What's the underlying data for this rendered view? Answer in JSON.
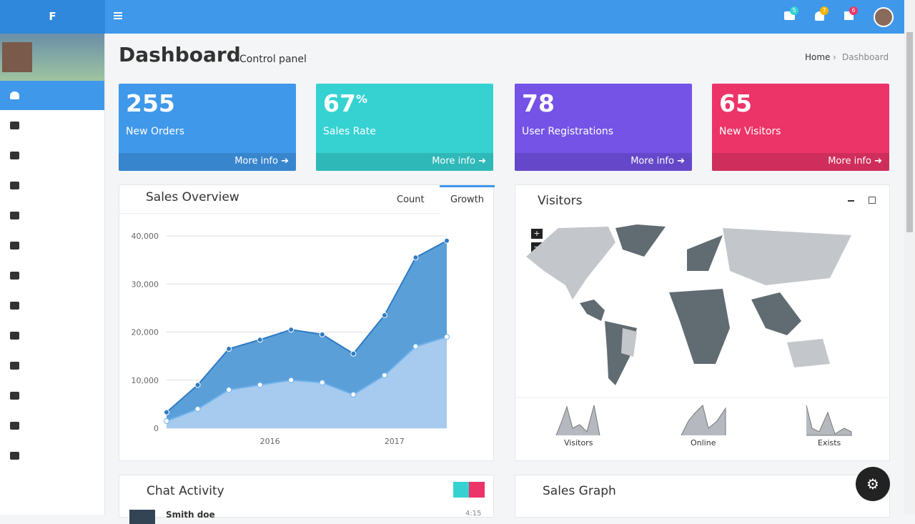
{
  "sidebar": {
    "logo": "F"
  },
  "topbar": {
    "badges": [
      "5",
      "7",
      "6"
    ]
  },
  "header": {
    "title": "Dashboard",
    "subtitle": "Control panel",
    "breadcrumb": [
      "Home",
      "Dashboard"
    ]
  },
  "stats": [
    {
      "value": "255",
      "label": "New Orders",
      "link": "More info"
    },
    {
      "value": "67",
      "suffix": "%",
      "label": "Sales Rate",
      "link": "More info"
    },
    {
      "value": "78",
      "label": "User Registrations",
      "link": "More info"
    },
    {
      "value": "65",
      "label": "New Visitors",
      "link": "More info"
    }
  ],
  "sales_overview": {
    "title": "Sales Overview",
    "tabs": [
      "Count",
      "Growth"
    ]
  },
  "chart_data": {
    "type": "area",
    "x": [
      2015.17,
      2015.42,
      2015.67,
      2015.92,
      2016.17,
      2016.42,
      2016.67,
      2016.92,
      2017.17,
      2017.42
    ],
    "xlim": [
      2015.17,
      2017.42
    ],
    "xticks": [
      2016,
      2017
    ],
    "series": [
      {
        "color": "#5b9fd9",
        "values": [
          3300,
          9000,
          16500,
          18400,
          20500,
          19500,
          15500,
          23500,
          35500,
          39000
        ]
      },
      {
        "color": "#a6cbee",
        "values": [
          1500,
          4000,
          8000,
          9000,
          10000,
          9500,
          7000,
          11000,
          17000,
          19000
        ]
      }
    ],
    "ylim": [
      0,
      40000
    ],
    "yticks": [
      0,
      {
        "value": 10000,
        "label": "10,000"
      },
      {
        "value": 20000,
        "label": "20,000"
      },
      {
        "value": 30000,
        "label": "30,000"
      },
      {
        "value": 40000,
        "label": "40,000"
      }
    ],
    "grid": true
  },
  "visitors": {
    "title": "Visitors",
    "zoom": [
      "+",
      "−"
    ],
    "sparklines": [
      "Visitors",
      "Online",
      "Exists"
    ]
  },
  "chat": {
    "title": "Chat Activity",
    "name": "Smith doe",
    "time": "4:15"
  },
  "sales_graph": {
    "title": "Sales Graph"
  }
}
